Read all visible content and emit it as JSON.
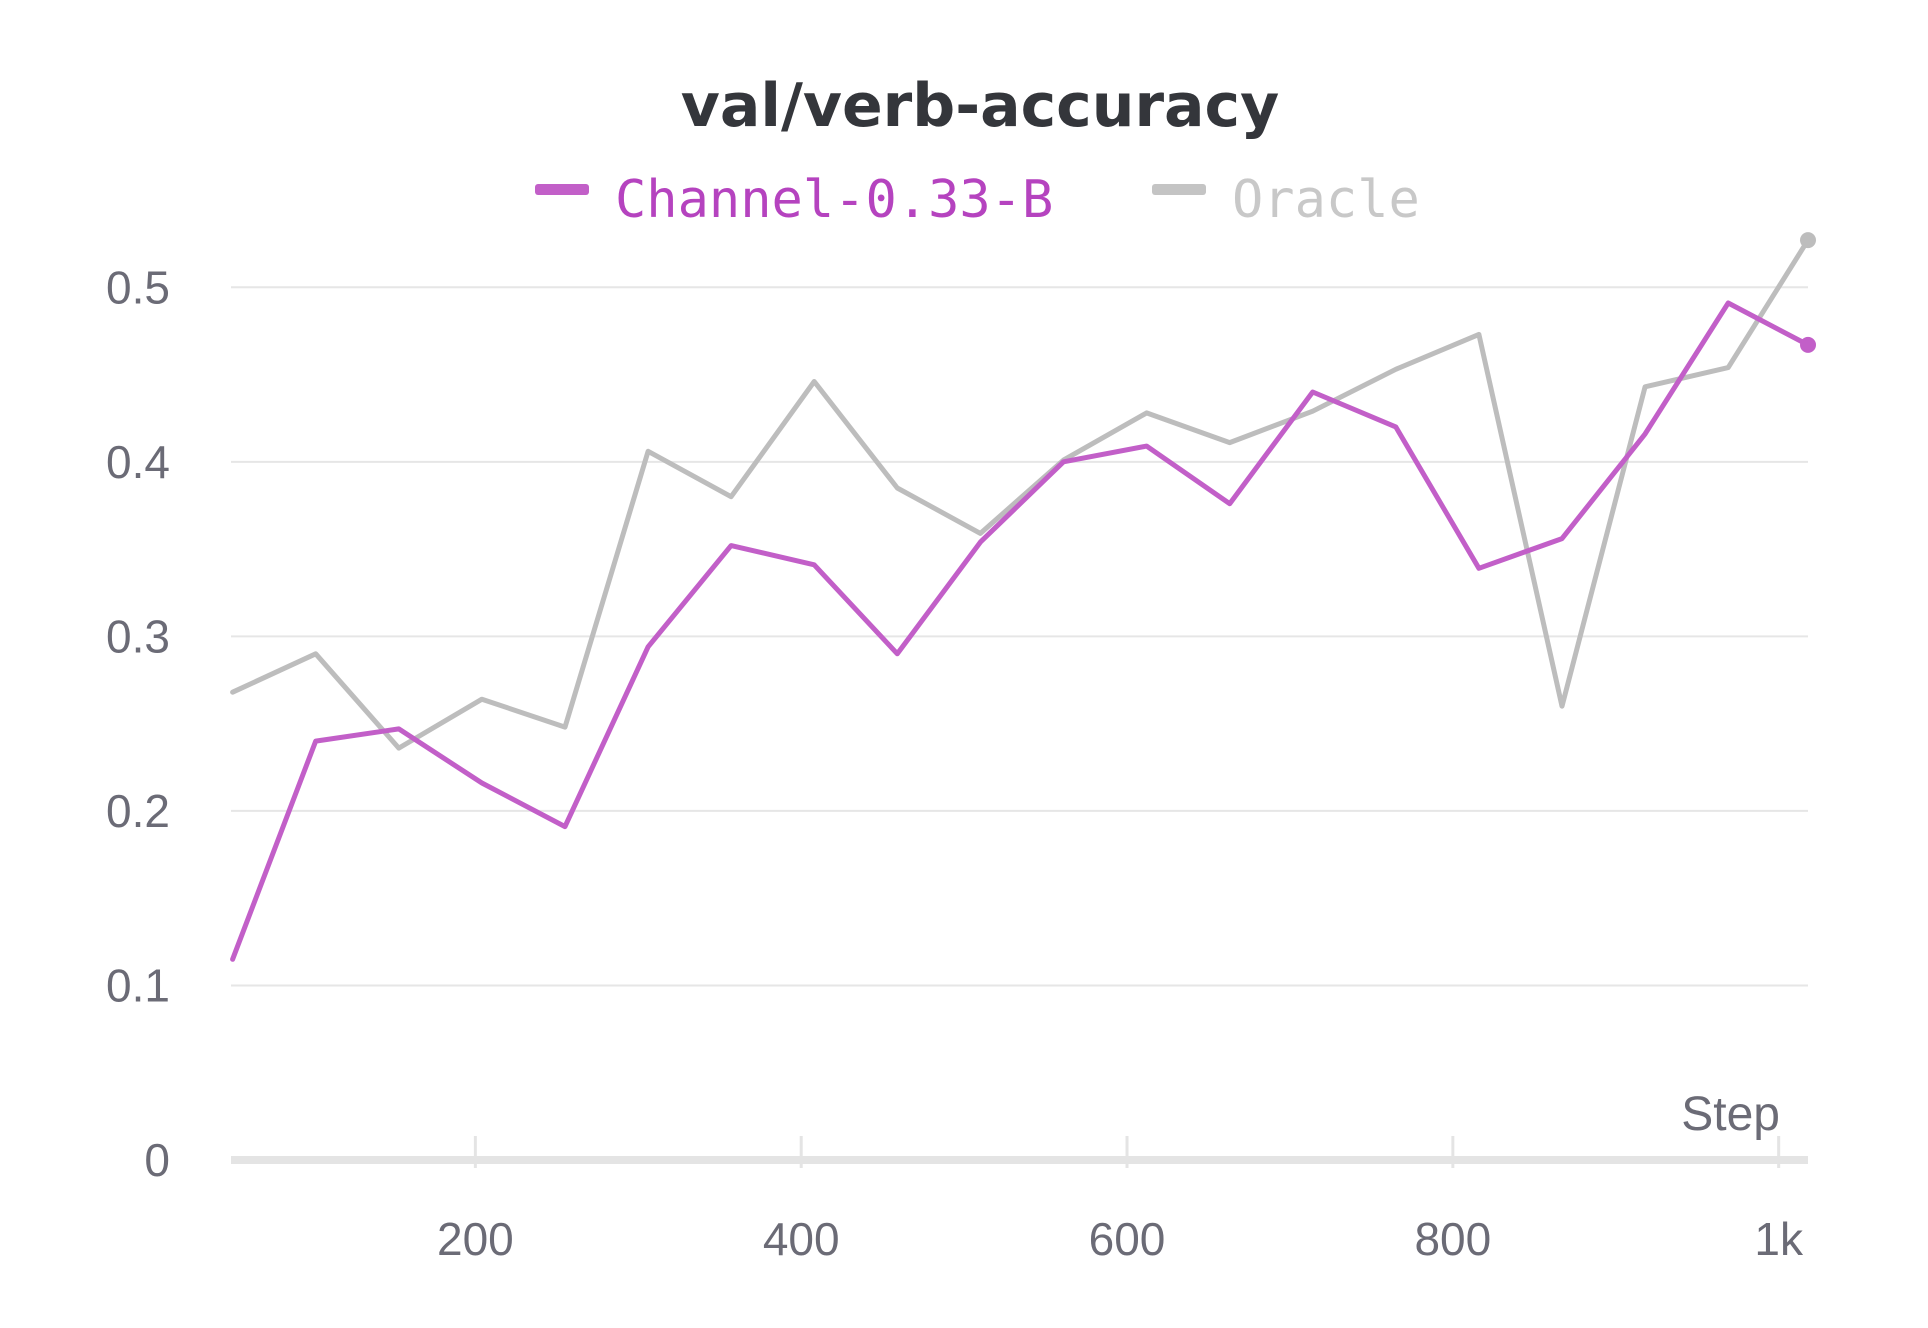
{
  "chart_data": {
    "type": "line",
    "title": "val/verb-accuracy",
    "xlabel": "Step",
    "ylabel": "",
    "xlim": [
      50,
      1018
    ],
    "ylim": [
      0,
      0.55
    ],
    "x_ticks": [
      200,
      400,
      600,
      800,
      1000
    ],
    "x_tick_labels": [
      "200",
      "400",
      "600",
      "800",
      "1k"
    ],
    "y_ticks": [
      0,
      0.1,
      0.2,
      0.3,
      0.4,
      0.5
    ],
    "y_tick_labels": [
      "0",
      "0.1",
      "0.2",
      "0.3",
      "0.4",
      "0.5"
    ],
    "grid": true,
    "legend_position": "top-center",
    "series": [
      {
        "name": "Oracle",
        "color": "#bdbdbd",
        "x": [
          51,
          102,
          153,
          204,
          255,
          306,
          357,
          408,
          459,
          510,
          561,
          612,
          663,
          714,
          765,
          816,
          867,
          918,
          969,
          1018
        ],
        "y": [
          0.268,
          0.29,
          0.236,
          0.264,
          0.248,
          0.406,
          0.38,
          0.446,
          0.385,
          0.359,
          0.401,
          0.428,
          0.411,
          0.429,
          0.453,
          0.473,
          0.26,
          0.443,
          0.454,
          0.527
        ]
      },
      {
        "name": "Channel-0.33-B",
        "color": "#c25fc8",
        "x": [
          51,
          102,
          153,
          204,
          255,
          306,
          357,
          408,
          459,
          510,
          561,
          612,
          663,
          714,
          765,
          816,
          867,
          918,
          969,
          1018
        ],
        "y": [
          0.115,
          0.24,
          0.247,
          0.216,
          0.191,
          0.294,
          0.352,
          0.341,
          0.29,
          0.354,
          0.4,
          0.409,
          0.376,
          0.44,
          0.42,
          0.339,
          0.356,
          0.416,
          0.491,
          0.467
        ]
      }
    ]
  }
}
